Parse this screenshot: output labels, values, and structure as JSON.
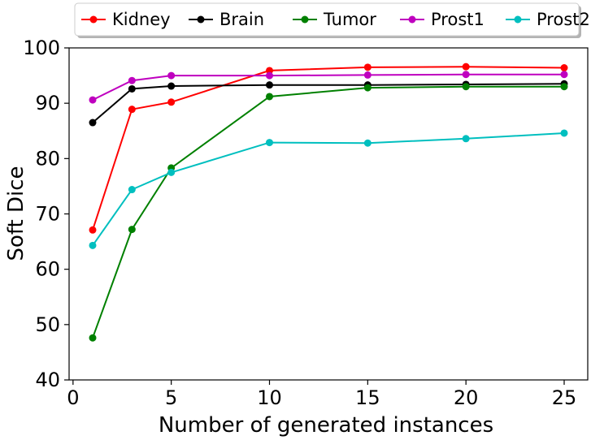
{
  "chart_data": {
    "type": "line",
    "title": "",
    "xlabel": "Number of generated instances",
    "ylabel": "Soft Dice",
    "xlim": [
      -0.2,
      26.2
    ],
    "ylim": [
      40,
      100
    ],
    "xticks": [
      0,
      5,
      10,
      15,
      20,
      25
    ],
    "yticks": [
      40,
      50,
      60,
      70,
      80,
      90,
      100
    ],
    "x": [
      1,
      3,
      5,
      10,
      15,
      20,
      25
    ],
    "grid": false,
    "legend_position": "top",
    "series": [
      {
        "name": "Kidney",
        "color": "#ff0000",
        "values": [
          67.1,
          88.9,
          90.2,
          95.9,
          96.5,
          96.6,
          96.4
        ]
      },
      {
        "name": "Brain",
        "color": "#000000",
        "values": [
          86.5,
          92.6,
          93.1,
          93.3,
          93.3,
          93.4,
          93.5
        ]
      },
      {
        "name": "Tumor",
        "color": "#008000",
        "values": [
          47.6,
          67.2,
          78.3,
          91.2,
          92.8,
          93.0,
          93.0
        ]
      },
      {
        "name": "Prost1",
        "color": "#bf00bf",
        "values": [
          90.6,
          94.1,
          95.0,
          95.0,
          95.1,
          95.2,
          95.2
        ]
      },
      {
        "name": "Prost2",
        "color": "#00bfbf",
        "values": [
          64.3,
          74.4,
          77.5,
          82.9,
          82.8,
          83.6,
          84.6
        ]
      }
    ]
  }
}
